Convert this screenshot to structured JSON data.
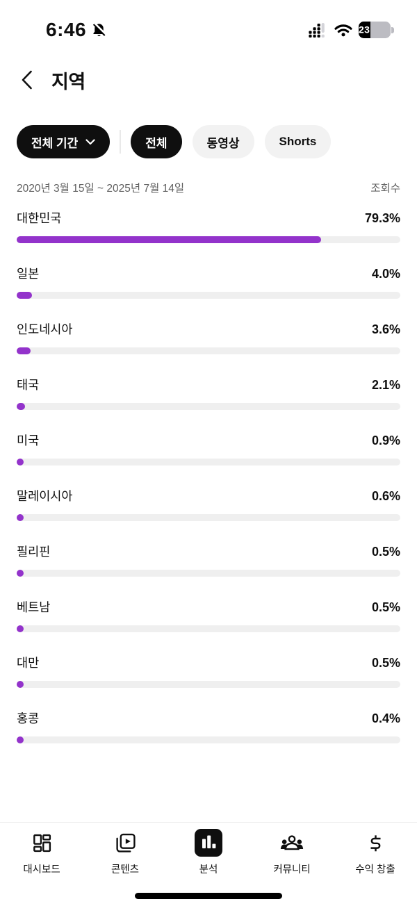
{
  "status_bar": {
    "time": "6:46",
    "battery_level": "23",
    "battery_fill_percent": 38
  },
  "header": {
    "title": "지역"
  },
  "filters": {
    "period_chip": {
      "label": "전체 기간"
    },
    "type_chips": [
      {
        "label": "전체",
        "selected": true
      },
      {
        "label": "동영상",
        "selected": false
      },
      {
        "label": "Shorts",
        "selected": false
      }
    ]
  },
  "meta": {
    "date_range": "2020년 3월 15일 ~ 2025년 7월 14일",
    "metric_label": "조회수"
  },
  "chart_data": {
    "type": "bar",
    "orientation": "horizontal",
    "title": "지역",
    "metric": "조회수",
    "categories": [
      "대한민국",
      "일본",
      "인도네시아",
      "태국",
      "미국",
      "말레이시아",
      "필리핀",
      "베트남",
      "대만",
      "홍콩"
    ],
    "values": [
      79.3,
      4.0,
      3.6,
      2.1,
      0.9,
      0.6,
      0.5,
      0.5,
      0.5,
      0.4
    ],
    "value_labels": [
      "79.3%",
      "4.0%",
      "3.6%",
      "2.1%",
      "0.9%",
      "0.6%",
      "0.5%",
      "0.5%",
      "0.5%",
      "0.4%"
    ],
    "xlim": [
      0,
      100
    ],
    "bar_color": "#9333CB",
    "track_color": "#EFEFEF"
  },
  "tab_bar": {
    "items": [
      {
        "label": "대시보드",
        "selected": false
      },
      {
        "label": "콘텐츠",
        "selected": false
      },
      {
        "label": "분석",
        "selected": true
      },
      {
        "label": "커뮤니티",
        "selected": false
      },
      {
        "label": "수익 창출",
        "selected": false
      }
    ]
  },
  "colors": {
    "accent": "#9333CB",
    "track": "#EFEFEF",
    "chip_dark": "#0F0F0F",
    "chip_light": "#F2F2F2",
    "text_secondary": "#606060"
  }
}
